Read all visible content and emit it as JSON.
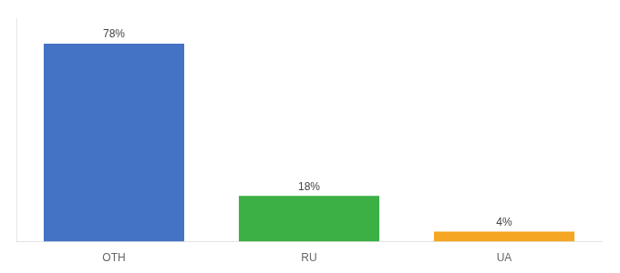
{
  "chart_data": {
    "type": "bar",
    "categories": [
      "OTH",
      "RU",
      "UA"
    ],
    "values": [
      78,
      18,
      4
    ],
    "value_labels": [
      "78%",
      "18%",
      "4%"
    ],
    "colors": [
      "#4472c4",
      "#3cb044",
      "#f5a623"
    ],
    "ylim": [
      0,
      88
    ],
    "data_labels": true,
    "tick_labels": "x",
    "grid": false
  }
}
